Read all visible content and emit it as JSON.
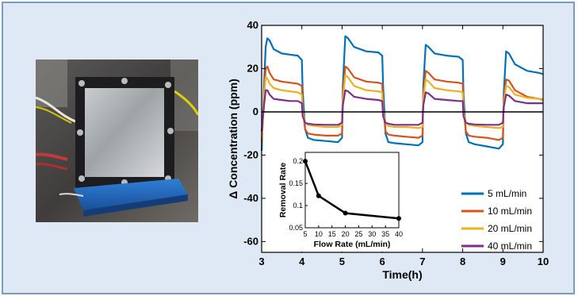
{
  "photo": {
    "caption": ""
  },
  "chart_data": [
    {
      "type": "line",
      "title": "",
      "xlabel": "Time(h)",
      "ylabel": "Δ Concentration (ppm)",
      "xlim": [
        3,
        10
      ],
      "ylim": [
        -65,
        40
      ],
      "xticks": [
        3,
        4,
        5,
        6,
        7,
        8,
        9,
        10
      ],
      "yticks": [
        -60,
        -40,
        -20,
        0,
        20,
        40
      ],
      "grid": false,
      "legend": "bottom-right",
      "series": [
        {
          "name": "5 mL/min",
          "color": "#0072bd",
          "x": [
            3.0,
            3.06,
            3.1,
            3.14,
            3.2,
            3.3,
            3.5,
            3.7,
            3.9,
            4.0,
            4.02,
            4.08,
            4.15,
            4.3,
            4.6,
            4.9,
            5.0,
            5.02,
            5.08,
            5.15,
            5.3,
            5.6,
            5.9,
            6.0,
            6.02,
            6.08,
            6.15,
            6.3,
            6.6,
            6.9,
            7.0,
            7.02,
            7.08,
            7.15,
            7.3,
            7.6,
            7.9,
            8.0,
            8.02,
            8.08,
            8.15,
            8.3,
            8.6,
            8.9,
            9.0,
            9.02,
            9.08,
            9.15,
            9.3,
            9.6,
            9.9,
            10.0
          ],
          "y": [
            -18,
            12,
            30,
            34,
            33,
            29,
            27,
            26.5,
            26,
            24,
            10,
            -8,
            -12,
            -13,
            -13.5,
            -14,
            -12,
            12,
            35,
            34,
            30,
            28,
            27.5,
            26,
            12,
            -10,
            -14,
            -14.5,
            -15,
            -15.5,
            -14,
            12,
            31,
            30,
            27,
            26,
            25.5,
            24,
            8,
            -10,
            -14,
            -15,
            -16,
            -17,
            -15,
            8,
            28,
            27,
            22,
            19,
            18,
            17.5
          ]
        },
        {
          "name": "10 mL/min",
          "color": "#d95319",
          "x": [
            3.0,
            3.06,
            3.1,
            3.14,
            3.2,
            3.3,
            3.5,
            3.7,
            3.9,
            4.0,
            4.02,
            4.08,
            4.15,
            4.3,
            4.6,
            4.9,
            5.0,
            5.02,
            5.08,
            5.15,
            5.3,
            5.6,
            5.9,
            6.0,
            6.02,
            6.08,
            6.15,
            6.3,
            6.6,
            6.9,
            7.0,
            7.02,
            7.08,
            7.15,
            7.3,
            7.6,
            7.9,
            8.0,
            8.02,
            8.08,
            8.15,
            8.3,
            8.6,
            8.9,
            9.0,
            9.02,
            9.08,
            9.15,
            9.3,
            9.6,
            9.9,
            10.0
          ],
          "y": [
            -14,
            8,
            20,
            21,
            18,
            15,
            14,
            13.5,
            13,
            12,
            2,
            -8,
            -10,
            -10.5,
            -11,
            -11,
            -10,
            8,
            21,
            20,
            16,
            14,
            13.5,
            13,
            2,
            -9,
            -10.5,
            -11,
            -11.5,
            -12,
            -11,
            8,
            19,
            18,
            15,
            14,
            13.5,
            13,
            2,
            -9,
            -11,
            -11.5,
            -12,
            -13,
            -12,
            5,
            15,
            14.5,
            10,
            7,
            6,
            5.5
          ]
        },
        {
          "name": "20 mL/min",
          "color": "#edb120",
          "x": [
            3.0,
            3.06,
            3.1,
            3.14,
            3.2,
            3.3,
            3.5,
            3.7,
            3.9,
            4.0,
            4.02,
            4.08,
            4.15,
            4.3,
            4.6,
            4.9,
            5.0,
            5.02,
            5.08,
            5.15,
            5.3,
            5.6,
            5.9,
            6.0,
            6.02,
            6.08,
            6.15,
            6.3,
            6.6,
            6.9,
            7.0,
            7.02,
            7.08,
            7.15,
            7.3,
            7.6,
            7.9,
            8.0,
            8.02,
            8.08,
            8.15,
            8.3,
            8.6,
            8.9,
            9.0,
            9.02,
            9.08,
            9.15,
            9.3,
            9.6,
            9.9,
            10.0
          ],
          "y": [
            -12,
            8,
            16,
            15.5,
            13,
            11,
            10,
            9.5,
            9,
            8,
            0,
            -5,
            -6,
            -6.5,
            -7,
            -7,
            -6,
            6,
            17,
            16,
            12,
            10,
            9.5,
            9,
            0,
            -5,
            -6.5,
            -7,
            -7,
            -7.5,
            -7,
            6,
            15,
            14,
            11,
            10,
            9.5,
            9,
            0,
            -5,
            -6,
            -6.5,
            -7,
            -7.5,
            -7,
            4,
            12,
            11.5,
            8,
            6.5,
            6,
            6
          ]
        },
        {
          "name": "40 mL/min",
          "color": "#7e2f8e",
          "x": [
            3.0,
            3.06,
            3.1,
            3.14,
            3.2,
            3.3,
            3.5,
            3.7,
            3.9,
            4.0,
            4.02,
            4.08,
            4.15,
            4.3,
            4.6,
            4.9,
            5.0,
            5.02,
            5.08,
            5.15,
            5.3,
            5.6,
            5.9,
            6.0,
            6.02,
            6.08,
            6.15,
            6.3,
            6.6,
            6.9,
            7.0,
            7.02,
            7.08,
            7.15,
            7.3,
            7.6,
            7.9,
            8.0,
            8.02,
            8.08,
            8.15,
            8.3,
            8.6,
            8.9,
            9.0,
            9.02,
            9.08,
            9.15,
            9.3,
            9.6,
            9.9,
            10.0
          ],
          "y": [
            -9,
            3,
            10,
            10,
            8,
            6,
            5.5,
            5,
            5,
            4,
            -2,
            -5,
            -5.5,
            -5.8,
            -6,
            -6,
            -5,
            3,
            10,
            9.5,
            7,
            6,
            5.5,
            5,
            -2,
            -5,
            -5.5,
            -6,
            -6,
            -6,
            -5,
            3,
            9,
            8.5,
            6,
            5.5,
            5,
            5,
            -2,
            -5,
            -5.5,
            -5.8,
            -6,
            -6,
            -5,
            2,
            8,
            7.5,
            5,
            4,
            4,
            4
          ]
        },
        {
          "name": "",
          "color": "#000000",
          "x": [
            3,
            10
          ],
          "y": [
            0,
            0
          ]
        }
      ]
    },
    {
      "type": "line",
      "title": "",
      "xlabel": "Flow Rate (mL/min)",
      "ylabel": "Removal Rate",
      "xlim": [
        5,
        40
      ],
      "ylim": [
        0.05,
        0.22
      ],
      "xticks": [
        5,
        10,
        15,
        20,
        25,
        30,
        35,
        40
      ],
      "yticks": [
        0.05,
        0.1,
        0.15,
        0.2
      ],
      "ytick_labels": [
        "0.05",
        "0.1",
        "0.15",
        "0.2"
      ],
      "grid": false,
      "series": [
        {
          "name": "",
          "color": "#000000",
          "x": [
            5,
            10,
            20,
            40
          ],
          "y": [
            0.2,
            0.122,
            0.083,
            0.071
          ]
        }
      ]
    }
  ]
}
